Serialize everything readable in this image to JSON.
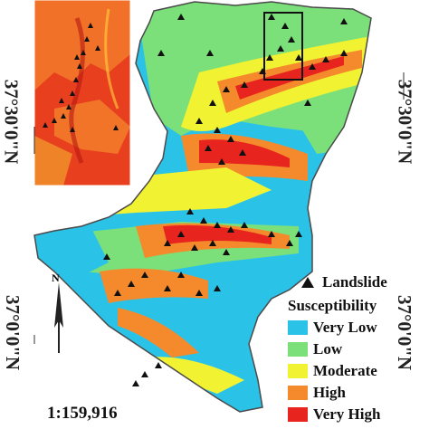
{
  "map": {
    "latitude_labels": [
      "37°30'0\"N",
      "37°0'0\"N"
    ],
    "scale": "1:159,916",
    "north_label": "N"
  },
  "legend": {
    "landslide_label": "Landslide",
    "susceptibility_title": "Susceptibility",
    "classes": [
      {
        "label": "Very Low",
        "color": "#2bc2e8"
      },
      {
        "label": "Low",
        "color": "#7be07a"
      },
      {
        "label": "Moderate",
        "color": "#f1f231"
      },
      {
        "label": "High",
        "color": "#f58a2c"
      },
      {
        "label": "Very High",
        "color": "#e8241f"
      }
    ]
  }
}
